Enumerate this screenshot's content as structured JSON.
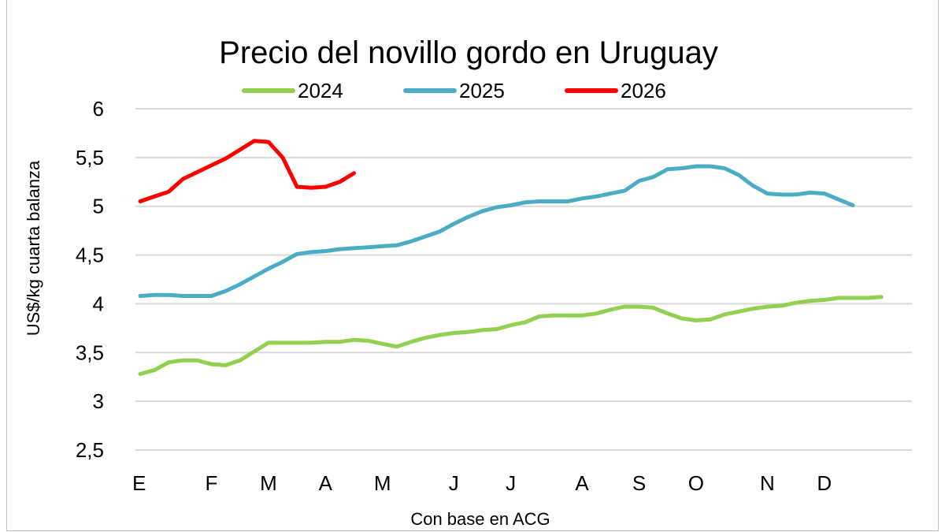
{
  "chart_data": {
    "type": "line",
    "title": "Precio del novillo gordo en Uruguay",
    "xlabel": "Con base en ACG",
    "ylabel": "US$/kg cuarta balanza",
    "ylim": [
      2.5,
      6
    ],
    "yticks": [
      "2,5",
      "3",
      "3,5",
      "4",
      "4,5",
      "5",
      "5,5",
      "6"
    ],
    "ytick_values": [
      2.5,
      3,
      3.5,
      4,
      4.5,
      5,
      5.5,
      6
    ],
    "xticks": [
      "E",
      "F",
      "M",
      "A",
      "M",
      "J",
      "J",
      "A",
      "S",
      "O",
      "N",
      "D"
    ],
    "xtick_weeks": [
      0,
      5,
      9,
      13,
      17,
      22,
      26,
      31,
      35,
      39,
      44,
      48
    ],
    "x_unit": "week",
    "grid": true,
    "legend_position": "top",
    "series": [
      {
        "name": "2024",
        "color": "#92d050",
        "values": [
          3.28,
          3.32,
          3.4,
          3.42,
          3.42,
          3.38,
          3.37,
          3.42,
          3.51,
          3.6,
          3.6,
          3.6,
          3.6,
          3.61,
          3.61,
          3.63,
          3.62,
          3.59,
          3.56,
          3.61,
          3.65,
          3.68,
          3.7,
          3.71,
          3.73,
          3.74,
          3.78,
          3.81,
          3.87,
          3.88,
          3.88,
          3.88,
          3.9,
          3.94,
          3.97,
          3.97,
          3.96,
          3.9,
          3.85,
          3.83,
          3.84,
          3.89,
          3.92,
          3.95,
          3.97,
          3.98,
          4.01,
          4.03,
          4.04,
          4.06,
          4.06,
          4.06,
          4.07
        ]
      },
      {
        "name": "2025",
        "color": "#4bacc6",
        "values": [
          4.08,
          4.09,
          4.09,
          4.08,
          4.08,
          4.08,
          4.13,
          4.2,
          4.28,
          4.36,
          4.43,
          4.51,
          4.53,
          4.54,
          4.56,
          4.57,
          4.58,
          4.59,
          4.6,
          4.64,
          4.69,
          4.74,
          4.82,
          4.89,
          4.95,
          4.99,
          5.01,
          5.04,
          5.05,
          5.05,
          5.05,
          5.08,
          5.1,
          5.13,
          5.16,
          5.26,
          5.3,
          5.38,
          5.39,
          5.41,
          5.41,
          5.39,
          5.32,
          5.21,
          5.13,
          5.12,
          5.12,
          5.14,
          5.13,
          5.07,
          5.01
        ]
      },
      {
        "name": "2026",
        "color": "#ff0000",
        "values": [
          5.05,
          5.1,
          5.15,
          5.28,
          5.35,
          5.42,
          5.49,
          5.58,
          5.67,
          5.66,
          5.5,
          5.2,
          5.19,
          5.2,
          5.25,
          5.34
        ]
      }
    ]
  }
}
